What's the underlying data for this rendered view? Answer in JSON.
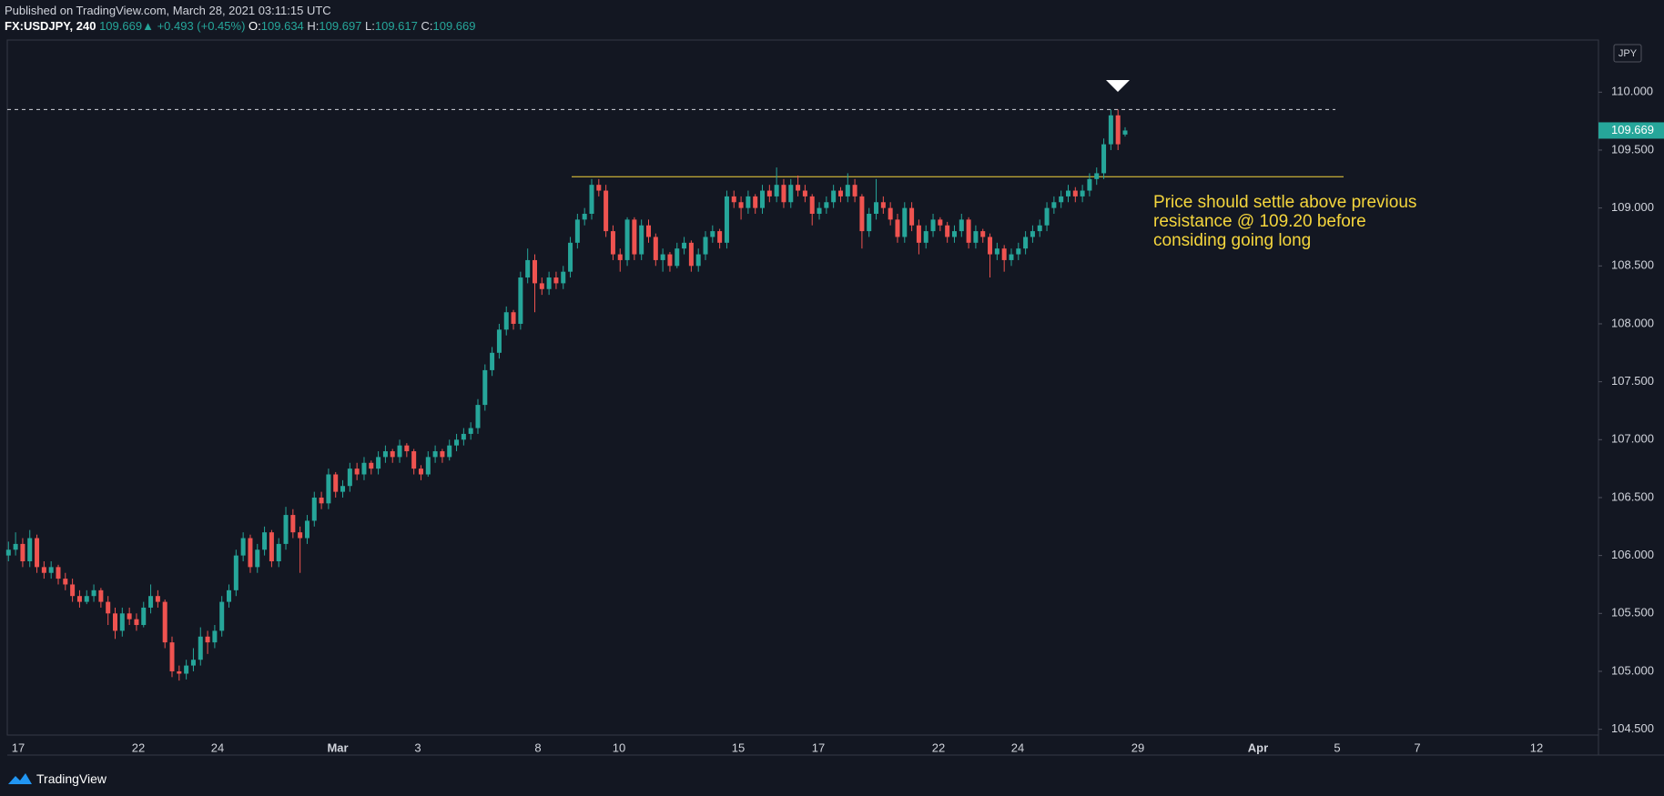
{
  "header": {
    "published": "Published on TradingView.com, March 28, 2021 03:11:15 UTC",
    "symbol": "FX:USDJPY, 240",
    "last": "109.669",
    "arrow": "▲",
    "change": "+0.493 (+0.45%)",
    "ohlc": [
      {
        "label": "O:",
        "value": "109.634"
      },
      {
        "label": "H:",
        "value": "109.697"
      },
      {
        "label": "L:",
        "value": "109.617"
      },
      {
        "label": "C:",
        "value": "109.669"
      }
    ]
  },
  "chart_data": {
    "type": "candlestick",
    "currency": "JPY",
    "up_color": "#26a69a",
    "down_color": "#ef5350",
    "ylim": [
      104.45,
      110.45
    ],
    "yticks": [
      {
        "value": 104.5,
        "label": "104.500"
      },
      {
        "value": 105,
        "label": "105.000"
      },
      {
        "value": 105.5,
        "label": "105.500"
      },
      {
        "value": 106,
        "label": "106.000"
      },
      {
        "value": 106.5,
        "label": "106.500"
      },
      {
        "value": 107,
        "label": "107.000"
      },
      {
        "value": 107.5,
        "label": "107.500"
      },
      {
        "value": 108,
        "label": "108.000"
      },
      {
        "value": 108.5,
        "label": "108.500"
      },
      {
        "value": 109,
        "label": "109.000"
      },
      {
        "value": 109.5,
        "label": "109.500"
      },
      {
        "value": 110,
        "label": "110.000"
      }
    ],
    "xticks": [
      "17",
      "22",
      "24",
      "Mar",
      "3",
      "8",
      "10",
      "15",
      "17",
      "22",
      "24",
      "29",
      "Apr",
      "5",
      "7",
      "12"
    ],
    "last_price": {
      "value": 109.669,
      "label": "109.669"
    },
    "high_line": 109.85,
    "resistance_line": 109.27,
    "annotation": [
      "Price should settle above previous",
      "resistance @ 109.20 before",
      "considing going long"
    ],
    "ohlc": [
      [
        106.0,
        106.12,
        105.95,
        106.05
      ],
      [
        106.05,
        106.2,
        106.0,
        106.1
      ],
      [
        106.1,
        106.15,
        105.9,
        105.95
      ],
      [
        105.95,
        106.22,
        105.9,
        106.15
      ],
      [
        106.15,
        106.18,
        105.85,
        105.9
      ],
      [
        105.9,
        105.95,
        105.8,
        105.85
      ],
      [
        105.85,
        105.95,
        105.8,
        105.9
      ],
      [
        105.9,
        105.92,
        105.75,
        105.8
      ],
      [
        105.8,
        105.85,
        105.7,
        105.75
      ],
      [
        105.75,
        105.8,
        105.6,
        105.65
      ],
      [
        105.65,
        105.7,
        105.55,
        105.6
      ],
      [
        105.6,
        105.7,
        105.58,
        105.65
      ],
      [
        105.65,
        105.75,
        105.6,
        105.7
      ],
      [
        105.7,
        105.72,
        105.55,
        105.6
      ],
      [
        105.6,
        105.65,
        105.4,
        105.5
      ],
      [
        105.5,
        105.55,
        105.28,
        105.35
      ],
      [
        105.35,
        105.55,
        105.3,
        105.5
      ],
      [
        105.5,
        105.55,
        105.4,
        105.45
      ],
      [
        105.45,
        105.5,
        105.35,
        105.4
      ],
      [
        105.4,
        105.6,
        105.38,
        105.55
      ],
      [
        105.55,
        105.75,
        105.5,
        105.65
      ],
      [
        105.65,
        105.7,
        105.55,
        105.6
      ],
      [
        105.6,
        105.62,
        105.2,
        105.25
      ],
      [
        105.25,
        105.3,
        104.95,
        105.0
      ],
      [
        105.0,
        105.05,
        104.92,
        104.98
      ],
      [
        104.98,
        105.1,
        104.93,
        105.05
      ],
      [
        105.05,
        105.2,
        105.0,
        105.1
      ],
      [
        105.1,
        105.38,
        105.05,
        105.3
      ],
      [
        105.3,
        105.35,
        105.15,
        105.25
      ],
      [
        105.25,
        105.4,
        105.2,
        105.35
      ],
      [
        105.35,
        105.65,
        105.3,
        105.6
      ],
      [
        105.6,
        105.75,
        105.55,
        105.7
      ],
      [
        105.7,
        106.05,
        105.65,
        106.0
      ],
      [
        106.0,
        106.2,
        105.95,
        106.15
      ],
      [
        106.15,
        106.18,
        105.85,
        105.9
      ],
      [
        105.9,
        106.1,
        105.85,
        106.05
      ],
      [
        106.05,
        106.25,
        106.0,
        106.2
      ],
      [
        106.2,
        106.22,
        105.9,
        105.95
      ],
      [
        105.95,
        106.15,
        105.9,
        106.1
      ],
      [
        106.1,
        106.42,
        106.05,
        106.35
      ],
      [
        106.35,
        106.4,
        106.15,
        106.2
      ],
      [
        106.2,
        106.25,
        105.85,
        106.15
      ],
      [
        106.15,
        106.35,
        106.1,
        106.3
      ],
      [
        106.3,
        106.55,
        106.25,
        106.5
      ],
      [
        106.5,
        106.55,
        106.4,
        106.45
      ],
      [
        106.45,
        106.75,
        106.4,
        106.7
      ],
      [
        106.7,
        106.72,
        106.5,
        106.55
      ],
      [
        106.55,
        106.65,
        106.5,
        106.6
      ],
      [
        106.6,
        106.8,
        106.55,
        106.75
      ],
      [
        106.75,
        106.8,
        106.65,
        106.7
      ],
      [
        106.7,
        106.85,
        106.65,
        106.8
      ],
      [
        106.8,
        106.82,
        106.7,
        106.75
      ],
      [
        106.75,
        106.9,
        106.7,
        106.85
      ],
      [
        106.85,
        106.95,
        106.8,
        106.9
      ],
      [
        106.9,
        106.92,
        106.8,
        106.85
      ],
      [
        106.85,
        107.0,
        106.8,
        106.95
      ],
      [
        106.95,
        106.97,
        106.85,
        106.9
      ],
      [
        106.9,
        106.92,
        106.7,
        106.75
      ],
      [
        106.75,
        106.78,
        106.65,
        106.7
      ],
      [
        106.7,
        106.9,
        106.68,
        106.85
      ],
      [
        106.85,
        106.95,
        106.8,
        106.9
      ],
      [
        106.9,
        106.92,
        106.8,
        106.85
      ],
      [
        106.85,
        107.0,
        106.82,
        106.95
      ],
      [
        106.95,
        107.05,
        106.9,
        107.0
      ],
      [
        107.0,
        107.1,
        106.95,
        107.05
      ],
      [
        107.05,
        107.15,
        107.0,
        107.1
      ],
      [
        107.1,
        107.35,
        107.05,
        107.3
      ],
      [
        107.3,
        107.65,
        107.25,
        107.6
      ],
      [
        107.6,
        107.8,
        107.55,
        107.75
      ],
      [
        107.75,
        108.0,
        107.7,
        107.95
      ],
      [
        107.95,
        108.15,
        107.9,
        108.1
      ],
      [
        108.1,
        108.12,
        107.95,
        108.0
      ],
      [
        108.0,
        108.45,
        107.95,
        108.4
      ],
      [
        108.4,
        108.65,
        108.35,
        108.55
      ],
      [
        108.55,
        108.6,
        108.1,
        108.35
      ],
      [
        108.35,
        108.4,
        108.25,
        108.3
      ],
      [
        108.3,
        108.45,
        108.25,
        108.4
      ],
      [
        108.4,
        108.45,
        108.3,
        108.35
      ],
      [
        108.35,
        108.5,
        108.3,
        108.45
      ],
      [
        108.45,
        108.75,
        108.4,
        108.7
      ],
      [
        108.7,
        108.95,
        108.65,
        108.9
      ],
      [
        108.9,
        109.0,
        108.85,
        108.95
      ],
      [
        108.95,
        109.25,
        108.9,
        109.2
      ],
      [
        109.2,
        109.25,
        109.1,
        109.15
      ],
      [
        109.15,
        109.2,
        108.75,
        108.8
      ],
      [
        108.8,
        108.85,
        108.55,
        108.6
      ],
      [
        108.6,
        108.65,
        108.45,
        108.55
      ],
      [
        108.55,
        108.92,
        108.5,
        108.9
      ],
      [
        108.9,
        108.92,
        108.55,
        108.6
      ],
      [
        108.6,
        108.9,
        108.55,
        108.85
      ],
      [
        108.85,
        108.9,
        108.7,
        108.75
      ],
      [
        108.75,
        108.78,
        108.5,
        108.55
      ],
      [
        108.55,
        108.65,
        108.45,
        108.6
      ],
      [
        108.6,
        108.62,
        108.45,
        108.5
      ],
      [
        108.5,
        108.7,
        108.48,
        108.65
      ],
      [
        108.65,
        108.75,
        108.6,
        108.7
      ],
      [
        108.7,
        108.72,
        108.45,
        108.5
      ],
      [
        108.5,
        108.65,
        108.45,
        108.6
      ],
      [
        108.6,
        108.8,
        108.55,
        108.75
      ],
      [
        108.75,
        108.85,
        108.7,
        108.8
      ],
      [
        108.8,
        108.82,
        108.65,
        108.7
      ],
      [
        108.7,
        109.15,
        108.65,
        109.1
      ],
      [
        109.1,
        109.15,
        109.0,
        109.05
      ],
      [
        109.05,
        109.1,
        108.9,
        109.0
      ],
      [
        109.0,
        109.15,
        108.95,
        109.1
      ],
      [
        109.1,
        109.12,
        108.95,
        109.0
      ],
      [
        109.0,
        109.2,
        108.95,
        109.15
      ],
      [
        109.15,
        109.2,
        109.05,
        109.1
      ],
      [
        109.1,
        109.35,
        109.05,
        109.2
      ],
      [
        109.2,
        109.25,
        109.0,
        109.05
      ],
      [
        109.05,
        109.25,
        109.0,
        109.2
      ],
      [
        109.2,
        109.28,
        109.1,
        109.15
      ],
      [
        109.15,
        109.2,
        109.05,
        109.1
      ],
      [
        109.1,
        109.12,
        108.85,
        108.95
      ],
      [
        108.95,
        109.05,
        108.9,
        109.0
      ],
      [
        109.0,
        109.1,
        108.95,
        109.05
      ],
      [
        109.05,
        109.2,
        109.0,
        109.15
      ],
      [
        109.15,
        109.18,
        109.05,
        109.1
      ],
      [
        109.1,
        109.3,
        109.05,
        109.2
      ],
      [
        109.2,
        109.25,
        109.05,
        109.1
      ],
      [
        109.1,
        109.12,
        108.65,
        108.8
      ],
      [
        108.8,
        109.0,
        108.75,
        108.95
      ],
      [
        108.95,
        109.25,
        108.9,
        109.05
      ],
      [
        109.05,
        109.1,
        108.95,
        109.0
      ],
      [
        109.0,
        109.05,
        108.85,
        108.9
      ],
      [
        108.9,
        108.95,
        108.7,
        108.75
      ],
      [
        108.75,
        109.05,
        108.7,
        109.0
      ],
      [
        109.0,
        109.05,
        108.8,
        108.85
      ],
      [
        108.85,
        108.9,
        108.6,
        108.7
      ],
      [
        108.7,
        108.85,
        108.65,
        108.8
      ],
      [
        108.8,
        108.95,
        108.75,
        108.9
      ],
      [
        108.9,
        108.92,
        108.8,
        108.85
      ],
      [
        108.85,
        108.88,
        108.7,
        108.75
      ],
      [
        108.75,
        108.85,
        108.7,
        108.8
      ],
      [
        108.8,
        108.95,
        108.75,
        108.9
      ],
      [
        108.9,
        108.92,
        108.65,
        108.7
      ],
      [
        108.7,
        108.85,
        108.65,
        108.8
      ],
      [
        108.8,
        108.82,
        108.7,
        108.75
      ],
      [
        108.75,
        108.78,
        108.4,
        108.6
      ],
      [
        108.6,
        108.7,
        108.55,
        108.65
      ],
      [
        108.65,
        108.68,
        108.45,
        108.55
      ],
      [
        108.55,
        108.65,
        108.5,
        108.6
      ],
      [
        108.6,
        108.7,
        108.55,
        108.65
      ],
      [
        108.65,
        108.8,
        108.6,
        108.75
      ],
      [
        108.75,
        108.85,
        108.7,
        108.8
      ],
      [
        108.8,
        108.9,
        108.75,
        108.85
      ],
      [
        108.85,
        109.05,
        108.8,
        109.0
      ],
      [
        109.0,
        109.1,
        108.95,
        109.05
      ],
      [
        109.05,
        109.15,
        109.0,
        109.1
      ],
      [
        109.1,
        109.2,
        109.05,
        109.15
      ],
      [
        109.15,
        109.18,
        109.05,
        109.1
      ],
      [
        109.1,
        109.2,
        109.05,
        109.15
      ],
      [
        109.15,
        109.3,
        109.1,
        109.25
      ],
      [
        109.25,
        109.35,
        109.2,
        109.3
      ],
      [
        109.3,
        109.6,
        109.25,
        109.55
      ],
      [
        109.55,
        109.85,
        109.5,
        109.8
      ],
      [
        109.8,
        109.85,
        109.5,
        109.55
      ],
      [
        109.634,
        109.697,
        109.617,
        109.669
      ]
    ]
  },
  "footer": {
    "brand": "TradingView"
  }
}
